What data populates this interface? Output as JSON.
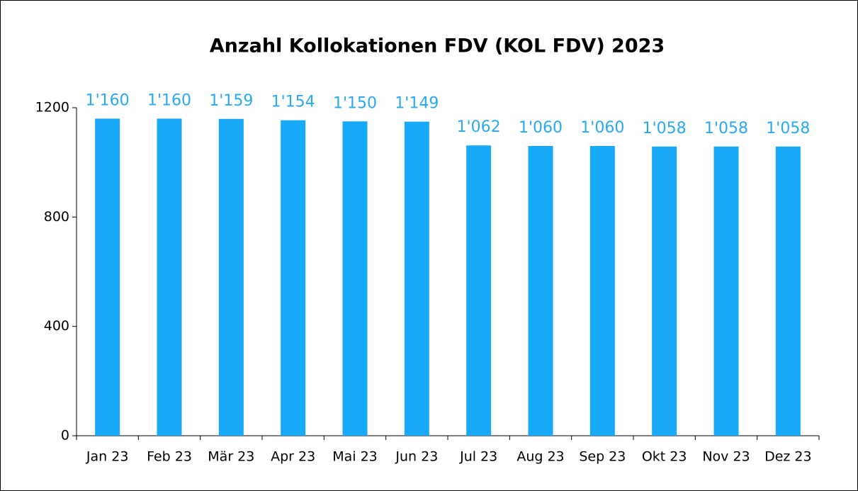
{
  "chart_data": {
    "type": "bar",
    "title": "Anzahl Kollokationen FDV (KOL FDV) 2023",
    "categories": [
      "Jan 23",
      "Feb 23",
      "Mär 23",
      "Apr 23",
      "Mai 23",
      "Jun 23",
      "Jul 23",
      "Aug 23",
      "Sep 23",
      "Okt 23",
      "Nov 23",
      "Dez 23"
    ],
    "values": [
      1160,
      1160,
      1159,
      1154,
      1150,
      1149,
      1062,
      1060,
      1060,
      1058,
      1058,
      1058
    ],
    "value_labels": [
      "1'160",
      "1'160",
      "1'159",
      "1'154",
      "1'150",
      "1'149",
      "1'062",
      "1'060",
      "1'060",
      "1'058",
      "1'058",
      "1'058"
    ],
    "color": "#19a9fb",
    "label_color": "#2aa8f0",
    "ylim": [
      0,
      1200
    ],
    "yticks": [
      0,
      400,
      800,
      1200
    ],
    "grid": false
  }
}
